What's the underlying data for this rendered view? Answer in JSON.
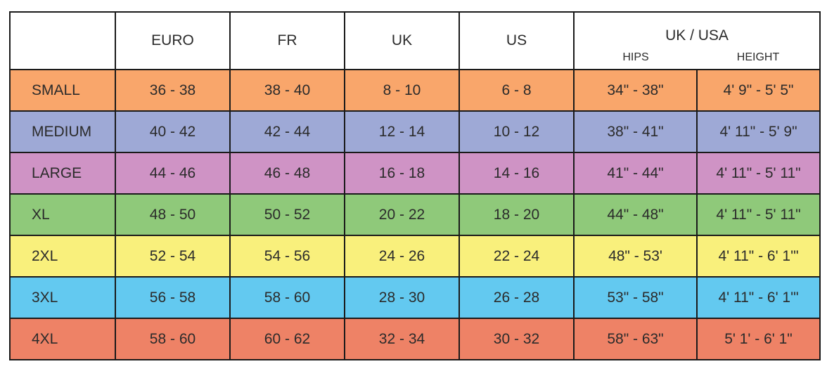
{
  "headers": {
    "size": "",
    "euro": "EURO",
    "fr": "FR",
    "uk": "UK",
    "us": "US",
    "uk_usa": "UK / USA",
    "hips": "HIPS",
    "height": "HEIGHT"
  },
  "colors": {
    "small": "#f9a66b",
    "medium": "#9ea9d6",
    "large": "#cf93c5",
    "xl": "#8fc97a",
    "2xl": "#f9f07c",
    "3xl": "#63c9f0",
    "4xl": "#ee8266"
  },
  "rows": [
    {
      "size": "SMALL",
      "euro": "36 - 38",
      "fr": "38 - 40",
      "uk": "8 - 10",
      "us": "6 - 8",
      "hips": "34\" - 38\"",
      "height": "4' 9\" - 5' 5\""
    },
    {
      "size": "MEDIUM",
      "euro": "40 - 42",
      "fr": "42 - 44",
      "uk": "12 - 14",
      "us": "10 - 12",
      "hips": "38\" - 41\"",
      "height": "4' 11\" - 5' 9\""
    },
    {
      "size": "LARGE",
      "euro": "44 - 46",
      "fr": "46 - 48",
      "uk": "16 - 18",
      "us": "14 - 16",
      "hips": "41\" -  44\"",
      "height": "4' 11\" - 5' 11\""
    },
    {
      "size": "XL",
      "euro": "48 - 50",
      "fr": "50 - 52",
      "uk": "20 - 22",
      "us": "18 - 20",
      "hips": "44\" - 48\"",
      "height": "4' 11\" - 5' 11\""
    },
    {
      "size": "2XL",
      "euro": "52 - 54",
      "fr": "54 - 56",
      "uk": "24 - 26",
      "us": "22 - 24",
      "hips": "48\" - 53'",
      "height": "4' 11\" - 6' 1'\""
    },
    {
      "size": "3XL",
      "euro": "56 - 58",
      "fr": "58 - 60",
      "uk": "28 - 30",
      "us": "26 - 28",
      "hips": "53\" - 58\"",
      "height": "4' 11\" - 6' 1'\""
    },
    {
      "size": "4XL",
      "euro": "58 - 60",
      "fr": "60 - 62",
      "uk": "32 - 34",
      "us": "30 - 32",
      "hips": "58\" - 63\"",
      "height": "5' 1' - 6' 1\""
    }
  ]
}
